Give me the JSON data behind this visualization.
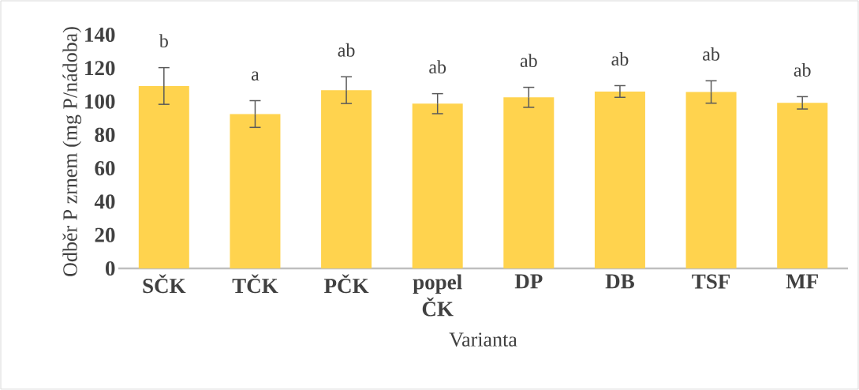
{
  "chart_data": {
    "type": "bar",
    "xlabel": "Varianta",
    "ylabel": "Odběr P zrnem (mg P/nádoba)",
    "categories": [
      "SČK",
      "TČK",
      "PČK",
      "popel ČK",
      "DP",
      "DB",
      "TSF",
      "MF"
    ],
    "values": [
      109.3,
      92.5,
      106.8,
      98.7,
      102.5,
      106,
      105.7,
      99.2
    ],
    "errors": [
      11,
      8,
      8,
      6,
      6,
      3.5,
      6.7,
      3.7
    ],
    "color": "#ffd34e",
    "ylim": [
      0,
      140
    ],
    "yticks": [
      0,
      20,
      40,
      60,
      80,
      100,
      120,
      140
    ],
    "grid": false,
    "annotations": [
      "b",
      "a",
      "ab",
      "ab",
      "ab",
      "ab",
      "ab",
      "ab"
    ]
  }
}
